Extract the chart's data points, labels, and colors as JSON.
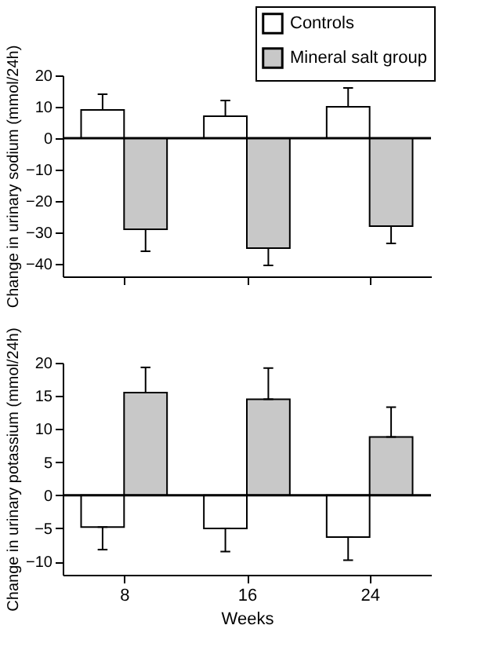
{
  "chart_data": [
    {
      "type": "bar",
      "ylabel": "Change in urinary sodium (mmol/24h)",
      "categories": [
        "8",
        "16",
        "24"
      ],
      "tick_labels": "y",
      "legend": "top right",
      "ylim": [
        -44,
        20
      ],
      "yticks": [
        -40,
        -30,
        -20,
        -10,
        0,
        10,
        20
      ],
      "grid": false,
      "ref_lines": [
        {
          "axis": "y",
          "value": 0
        }
      ],
      "series": [
        {
          "name": "Controls",
          "color": "#ffffff",
          "values": [
            9,
            7,
            10
          ],
          "errors": [
            [
              9,
              14
            ],
            [
              7,
              12
            ],
            [
              10,
              16
            ]
          ]
        },
        {
          "name": "Mineral salt group",
          "color": "#c8c8c8",
          "values": [
            -29,
            -35,
            -28
          ],
          "errors": [
            [
              -36,
              -29
            ],
            [
              -40.5,
              -35
            ],
            [
              -33.5,
              -28
            ]
          ]
        }
      ]
    },
    {
      "type": "bar",
      "ylabel": "Change in urinary potassium (mmol/24h)",
      "xlabel": "Weeks",
      "categories": [
        "8",
        "16",
        "24"
      ],
      "legend": false,
      "ylim": [
        -12,
        20
      ],
      "yticks": [
        -10,
        -5,
        0,
        5,
        10,
        15,
        20
      ],
      "grid": false,
      "ref_lines": [
        {
          "axis": "y",
          "value": 0
        }
      ],
      "series": [
        {
          "name": "Controls",
          "color": "#ffffff",
          "values": [
            -4.8,
            -5,
            -6.3
          ],
          "errors": [
            [
              -8.2,
              -4.8
            ],
            [
              -8.5,
              -5
            ],
            [
              -9.8,
              -6.3
            ]
          ]
        },
        {
          "name": "Mineral salt group",
          "color": "#c8c8c8",
          "values": [
            15.5,
            14.5,
            8.8
          ],
          "errors": [
            [
              15.5,
              19.3
            ],
            [
              14.5,
              19.2
            ],
            [
              8.8,
              13.3
            ]
          ]
        }
      ]
    }
  ]
}
